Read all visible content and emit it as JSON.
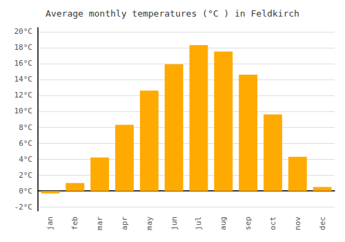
{
  "chart_data": {
    "type": "bar",
    "title": "Average monthly temperatures (°C ) in Feldkirch",
    "categories": [
      "jan",
      "feb",
      "mar",
      "apr",
      "may",
      "jun",
      "jul",
      "aug",
      "sep",
      "oct",
      "nov",
      "dec"
    ],
    "values": [
      -0.3,
      1.0,
      4.2,
      8.3,
      12.6,
      15.9,
      18.3,
      17.5,
      14.6,
      9.6,
      4.3,
      0.5
    ],
    "color": "#FFAA00",
    "ylim": [
      -2.5,
      20.5
    ],
    "yticks": [
      {
        "value": -2,
        "label": "-2°C"
      },
      {
        "value": 0,
        "label": "0°C"
      },
      {
        "value": 2,
        "label": "2°C"
      },
      {
        "value": 4,
        "label": "4°C"
      },
      {
        "value": 6,
        "label": "6°C"
      },
      {
        "value": 8,
        "label": "8°C"
      },
      {
        "value": 10,
        "label": "10°C"
      },
      {
        "value": 12,
        "label": "12°C"
      },
      {
        "value": 14,
        "label": "14°C"
      },
      {
        "value": 16,
        "label": "16°C"
      },
      {
        "value": 18,
        "label": "18°C"
      },
      {
        "value": 20,
        "label": "20°C"
      }
    ],
    "grid": true
  }
}
